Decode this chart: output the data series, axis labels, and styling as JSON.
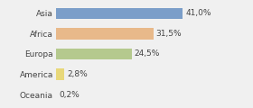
{
  "categories": [
    "Asia",
    "Africa",
    "Europa",
    "America",
    "Oceania"
  ],
  "values": [
    41.0,
    31.5,
    24.5,
    2.8,
    0.2
  ],
  "labels": [
    "41,0%",
    "31,5%",
    "24,5%",
    "2,8%",
    "0,2%"
  ],
  "bar_colors": [
    "#7b9ec9",
    "#e8b98a",
    "#b5c98e",
    "#e8d87a",
    "#d0d0d0"
  ],
  "background_color": "#f0f0f0",
  "label_fontsize": 6.5,
  "tick_fontsize": 6.5,
  "xlim": [
    0,
    62
  ],
  "bar_height": 0.55
}
